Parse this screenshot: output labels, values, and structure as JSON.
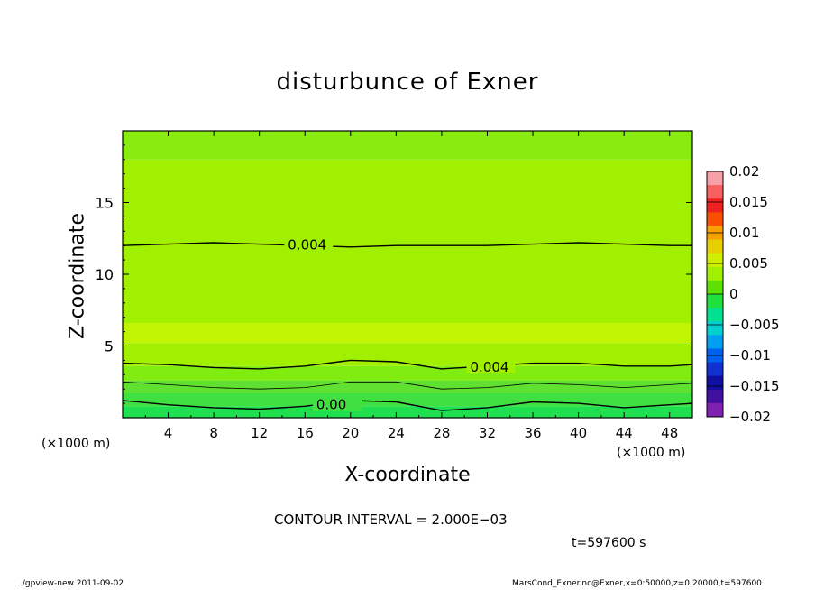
{
  "chart_data": {
    "type": "heatmap",
    "title": "disturbunce of Exner",
    "xlabel": "X-coordinate",
    "ylabel": "Z-coordinate",
    "x_unit": "(×1000 m)",
    "xlim": [
      0,
      50
    ],
    "ylim": [
      0,
      20
    ],
    "x_ticks": [
      4,
      8,
      12,
      16,
      20,
      24,
      28,
      32,
      36,
      40,
      44,
      48
    ],
    "y_ticks": [
      5,
      10,
      15
    ],
    "colorbar": {
      "levels": [
        0.02,
        0.015,
        0.01,
        0.005,
        0,
        -0.005,
        -0.01,
        -0.015,
        -0.02
      ],
      "tick_labels": [
        "0.02",
        "0.015",
        "0.01",
        "0.005",
        "0",
        "−0.005",
        "−0.01",
        "−0.015",
        "−0.02"
      ],
      "colors": [
        "#f8a0a8",
        "#f86060",
        "#f02020",
        "#f85000",
        "#f8a000",
        "#e8d000",
        "#d0f000",
        "#a0f000",
        "#60e000",
        "#20e040",
        "#00e090",
        "#00d0d0",
        "#00a0f0",
        "#0060f0",
        "#1030d0",
        "#1010a0",
        "#4010a0",
        "#8020b0"
      ]
    },
    "contours": [
      {
        "label": "0.004",
        "z_profile": [
          [
            0,
            12.0
          ],
          [
            4,
            12.1
          ],
          [
            8,
            12.2
          ],
          [
            12,
            12.1
          ],
          [
            16,
            12.0
          ],
          [
            20,
            11.9
          ],
          [
            24,
            12.0
          ],
          [
            28,
            12.0
          ],
          [
            32,
            12.0
          ],
          [
            36,
            12.1
          ],
          [
            40,
            12.2
          ],
          [
            44,
            12.1
          ],
          [
            48,
            12.0
          ],
          [
            50,
            12.0
          ]
        ]
      },
      {
        "label": "0.004",
        "z_profile": [
          [
            0,
            3.8
          ],
          [
            4,
            3.7
          ],
          [
            8,
            3.5
          ],
          [
            12,
            3.4
          ],
          [
            16,
            3.6
          ],
          [
            20,
            4.0
          ],
          [
            24,
            3.9
          ],
          [
            28,
            3.4
          ],
          [
            32,
            3.6
          ],
          [
            36,
            3.8
          ],
          [
            40,
            3.8
          ],
          [
            44,
            3.6
          ],
          [
            48,
            3.6
          ],
          [
            50,
            3.7
          ]
        ]
      },
      {
        "label": "",
        "z_profile": [
          [
            0,
            2.5
          ],
          [
            4,
            2.3
          ],
          [
            8,
            2.1
          ],
          [
            12,
            2.0
          ],
          [
            16,
            2.1
          ],
          [
            20,
            2.5
          ],
          [
            24,
            2.5
          ],
          [
            28,
            2.0
          ],
          [
            32,
            2.1
          ],
          [
            36,
            2.4
          ],
          [
            40,
            2.3
          ],
          [
            44,
            2.1
          ],
          [
            48,
            2.3
          ],
          [
            50,
            2.4
          ]
        ]
      },
      {
        "label": "0.00",
        "z_profile": [
          [
            0,
            1.2
          ],
          [
            4,
            0.9
          ],
          [
            8,
            0.7
          ],
          [
            12,
            0.6
          ],
          [
            16,
            0.8
          ],
          [
            20,
            1.2
          ],
          [
            24,
            1.1
          ],
          [
            28,
            0.5
          ],
          [
            32,
            0.7
          ],
          [
            36,
            1.1
          ],
          [
            40,
            1.0
          ],
          [
            44,
            0.7
          ],
          [
            48,
            0.9
          ],
          [
            50,
            1.0
          ]
        ]
      }
    ],
    "fill_bands": [
      {
        "z_range": [
          0,
          0.8
        ],
        "color": "#20e050"
      },
      {
        "z_range": [
          0.8,
          1.7
        ],
        "color": "#40e040"
      },
      {
        "z_range": [
          1.7,
          2.6
        ],
        "color": "#60e030"
      },
      {
        "z_range": [
          2.6,
          3.6
        ],
        "color": "#80ec10"
      },
      {
        "z_range": [
          3.6,
          5.2
        ],
        "color": "#a0f000"
      },
      {
        "z_range": [
          5.2,
          6.6
        ],
        "color": "#c0f400"
      },
      {
        "z_range": [
          6.6,
          18.0
        ],
        "color": "#a0f000"
      },
      {
        "z_range": [
          18.0,
          20.0
        ],
        "color": "#88ec10"
      }
    ]
  },
  "annotations": {
    "contour_interval": "CONTOUR INTERVAL = 2.000E−03",
    "time": "t=597600 s",
    "footer_left": "./gpview-new   2011-09-02",
    "footer_right": "MarsCond_Exner.nc@Exner,x=0:50000,z=0:20000,t=597600"
  }
}
